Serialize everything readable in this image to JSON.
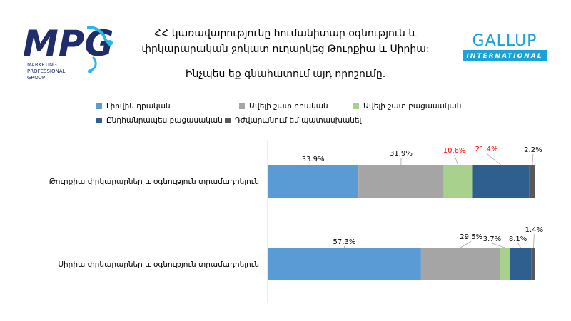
{
  "header": {
    "title_line1": "ՀՀ կառավարությունը հումանիտար օգնություն և",
    "title_line2": "փրկարարական ջոկատ ուղարկեց Թուրքիա և Սիրիա:",
    "question": "Ինչպես եք գնահատում այդ որոշումը."
  },
  "logos": {
    "mpg": {
      "mark": "MPG",
      "sub1": "MARKETING",
      "sub2": "PROFESSIONAL",
      "sub3": "GROUP"
    },
    "gallup": {
      "name": "GALLUP",
      "sub": "INTERNATIONAL"
    }
  },
  "colors": {
    "series": [
      "#5b9bd5",
      "#a5a5a5",
      "#a9d18e",
      "#2e5f8f",
      "#595959"
    ],
    "highlight_label": "#ff0000",
    "mpg_blue": "#1f2d6b",
    "mpg_cyan": "#29b6e8",
    "gallup_blue": "#1aa3d9"
  },
  "chart_data": {
    "type": "bar",
    "orientation": "horizontal-stacked-100",
    "categories": [
      "Թուրքիա փրկարարներ և օգնություն տրամադրելուն",
      "Սիրիա փրկարարներ և օգնություն տրամադրելուն"
    ],
    "series": [
      {
        "name": "Լիովին դրական",
        "values": [
          33.9,
          57.3
        ]
      },
      {
        "name": "Ավելի շատ դրական",
        "values": [
          31.9,
          29.5
        ]
      },
      {
        "name": "Ավելի շատ բացասական",
        "values": [
          10.6,
          3.7
        ]
      },
      {
        "name": "Ընդհանրապես բացասական",
        "values": [
          21.4,
          8.1
        ]
      },
      {
        "name": "Դժվարանում եմ պատասխանել",
        "values": [
          2.2,
          1.4
        ]
      }
    ],
    "data_labels": [
      [
        "33.9%",
        "31.9%",
        "10.6%",
        "21.4%",
        "2.2%"
      ],
      [
        "57.3%",
        "29.5%",
        "3.7%",
        "8.1%",
        "1.4%"
      ]
    ],
    "highlighted_labels": [
      [
        2,
        3
      ],
      []
    ],
    "xlim": [
      0,
      100
    ],
    "legend_position": "top"
  }
}
